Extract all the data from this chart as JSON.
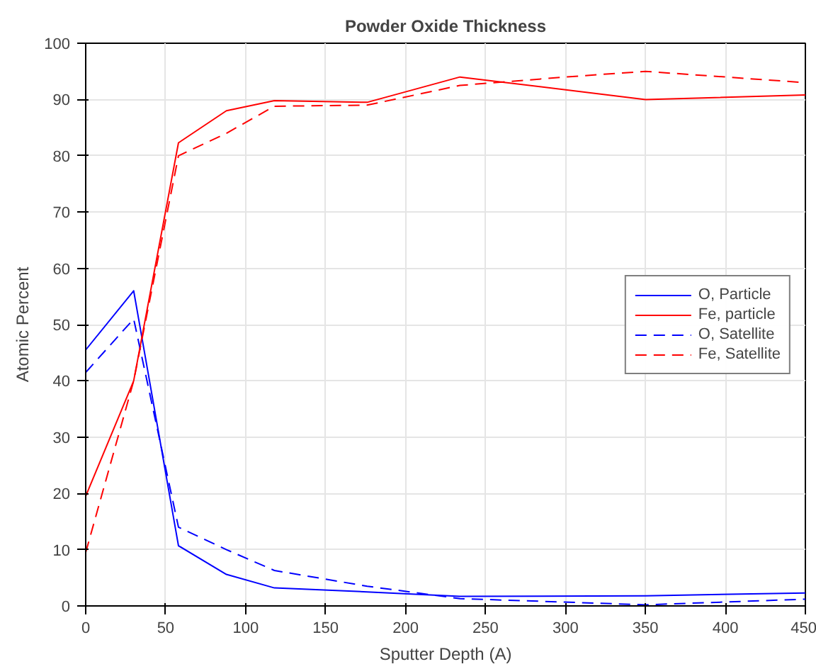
{
  "chart_data": {
    "type": "line",
    "title": "Powder Oxide Thickness",
    "xlabel": "Sputter Depth (A)",
    "ylabel": "Atomic Percent",
    "xlim": [
      0,
      450
    ],
    "xticks": [
      0,
      50,
      100,
      150,
      200,
      250,
      300,
      350,
      400,
      450
    ],
    "ylim": [
      0,
      100
    ],
    "yticks": [
      0,
      10,
      20,
      30,
      40,
      50,
      60,
      70,
      80,
      90,
      100
    ],
    "grid": true,
    "legend": "right",
    "marker": "none",
    "series": [
      {
        "name": "O, Particle",
        "color": "#0000ff",
        "line_style": "solid",
        "x": [
          0,
          30,
          58,
          88,
          118,
          176,
          234,
          350,
          450
        ],
        "values": [
          45.5,
          56,
          10.7,
          5.6,
          3.2,
          2.5,
          1.7,
          1.8,
          2.3
        ]
      },
      {
        "name": "Fe, particle",
        "color": "#ff0000",
        "line_style": "solid",
        "x": [
          0,
          30,
          58,
          88,
          118,
          176,
          234,
          350,
          450
        ],
        "values": [
          19.5,
          40,
          82.3,
          88,
          89.8,
          89.5,
          94,
          90,
          90.8
        ]
      },
      {
        "name": "O, Satellite",
        "color": "#0000ff",
        "line_style": "dashed",
        "x": [
          0,
          30,
          58,
          88,
          118,
          176,
          234,
          350,
          450
        ],
        "values": [
          41.5,
          51,
          14,
          10,
          6.3,
          3.5,
          1.3,
          0.2,
          1.2
        ]
      },
      {
        "name": "Fe, Satellite",
        "color": "#ff0000",
        "line_style": "dashed",
        "x": [
          0,
          30,
          58,
          88,
          118,
          176,
          234,
          300,
          350,
          450
        ],
        "values": [
          9.5,
          40,
          80,
          84,
          88.8,
          89,
          92.5,
          94,
          95,
          93
        ]
      }
    ]
  }
}
